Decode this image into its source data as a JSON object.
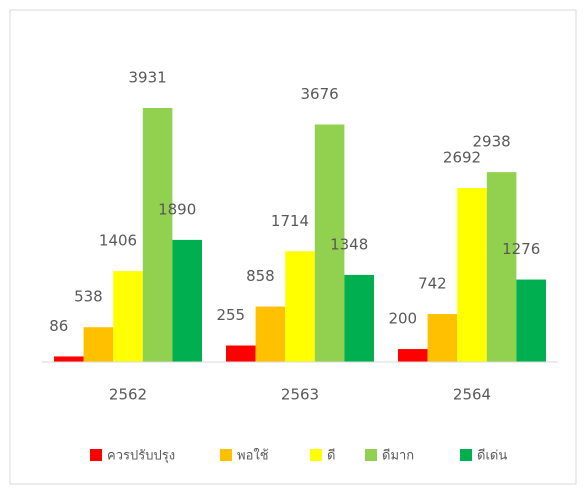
{
  "chart_data": {
    "type": "bar",
    "categories": [
      "2562",
      "2563",
      "2564"
    ],
    "series": [
      {
        "name": "ควรปรับปรุง",
        "color": "#ff0000",
        "values": [
          86,
          255,
          200
        ]
      },
      {
        "name": "พอใช้",
        "color": "#ffc000",
        "values": [
          538,
          858,
          742
        ]
      },
      {
        "name": "ดี",
        "color": "#ffff00",
        "values": [
          1406,
          1714,
          2692
        ]
      },
      {
        "name": "ดีมาก",
        "color": "#92d050",
        "values": [
          3931,
          3676,
          2938
        ]
      },
      {
        "name": "ดีเด่น",
        "color": "#00b050",
        "values": [
          1890,
          1348,
          1276
        ]
      }
    ],
    "legend": "bottom"
  }
}
